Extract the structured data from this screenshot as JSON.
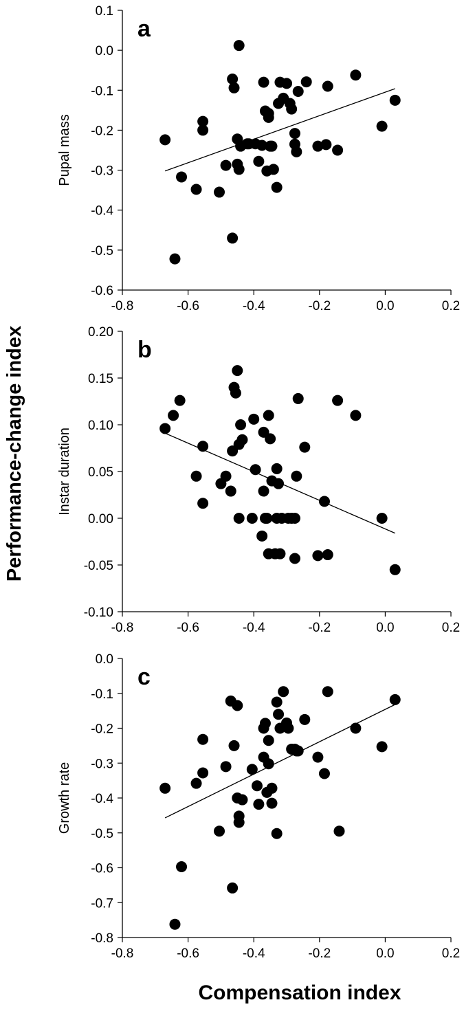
{
  "figure": {
    "shared_ylabel": "Performance-change index",
    "shared_xlabel": "Compensation index"
  },
  "chart_data": [
    {
      "type": "scatter",
      "panel": "a",
      "title": "",
      "xlabel": "",
      "ylabel": "Pupal mass",
      "xlim": [
        -0.8,
        0.2
      ],
      "ylim": [
        -0.6,
        0.1
      ],
      "x_ticks": [
        "-0.8",
        "-0.6",
        "-0.4",
        "-0.2",
        "0.0",
        "0.2"
      ],
      "y_ticks": [
        "0.1",
        "0.0",
        "-0.1",
        "-0.2",
        "-0.3",
        "-0.4",
        "-0.5",
        "-0.6"
      ],
      "grid": false,
      "trendline": {
        "x": [
          -0.67,
          0.03
        ],
        "y": [
          -0.302,
          -0.096
        ]
      },
      "points": {
        "x": [
          -0.67,
          -0.64,
          -0.62,
          -0.575,
          -0.555,
          -0.555,
          -0.505,
          -0.485,
          -0.465,
          -0.465,
          -0.46,
          -0.45,
          -0.45,
          -0.445,
          -0.445,
          -0.44,
          -0.42,
          -0.415,
          -0.395,
          -0.385,
          -0.375,
          -0.37,
          -0.365,
          -0.36,
          -0.355,
          -0.355,
          -0.35,
          -0.345,
          -0.34,
          -0.33,
          -0.325,
          -0.32,
          -0.31,
          -0.3,
          -0.29,
          -0.285,
          -0.275,
          -0.275,
          -0.27,
          -0.265,
          -0.24,
          -0.205,
          -0.18,
          -0.175,
          -0.145,
          -0.09,
          -0.01,
          0.03
        ],
        "y": [
          -0.224,
          -0.522,
          -0.317,
          -0.348,
          -0.178,
          -0.2,
          -0.355,
          -0.288,
          -0.072,
          -0.47,
          -0.094,
          -0.222,
          -0.285,
          0.012,
          -0.298,
          -0.24,
          -0.234,
          -0.234,
          -0.234,
          -0.278,
          -0.238,
          -0.08,
          -0.152,
          -0.302,
          -0.158,
          -0.168,
          -0.24,
          -0.24,
          -0.298,
          -0.343,
          -0.133,
          -0.08,
          -0.12,
          -0.083,
          -0.133,
          -0.147,
          -0.208,
          -0.235,
          -0.254,
          -0.103,
          -0.079,
          -0.24,
          -0.236,
          -0.09,
          -0.25,
          -0.062,
          -0.19,
          -0.125
        ]
      }
    },
    {
      "type": "scatter",
      "panel": "b",
      "title": "",
      "xlabel": "",
      "ylabel": "Instar duration",
      "xlim": [
        -0.8,
        0.2
      ],
      "ylim": [
        -0.1,
        0.2
      ],
      "x_ticks": [
        "-0.8",
        "-0.6",
        "-0.4",
        "-0.2",
        "0.0",
        "0.2"
      ],
      "y_ticks": [
        "0.20",
        "0.15",
        "0.10",
        "0.05",
        "0.00",
        "-0.05",
        "-0.10"
      ],
      "grid": false,
      "trendline": {
        "x": [
          -0.67,
          0.03
        ],
        "y": [
          0.091,
          -0.016
        ]
      },
      "points": {
        "x": [
          -0.67,
          -0.645,
          -0.625,
          -0.575,
          -0.555,
          -0.555,
          -0.5,
          -0.485,
          -0.47,
          -0.465,
          -0.46,
          -0.455,
          -0.45,
          -0.445,
          -0.445,
          -0.44,
          -0.435,
          -0.405,
          -0.4,
          -0.395,
          -0.375,
          -0.37,
          -0.37,
          -0.365,
          -0.36,
          -0.355,
          -0.355,
          -0.35,
          -0.345,
          -0.335,
          -0.33,
          -0.33,
          -0.325,
          -0.32,
          -0.315,
          -0.295,
          -0.285,
          -0.275,
          -0.275,
          -0.27,
          -0.265,
          -0.245,
          -0.205,
          -0.185,
          -0.175,
          -0.145,
          -0.09,
          -0.01,
          0.03
        ],
        "y": [
          0.096,
          0.11,
          0.126,
          0.045,
          0.077,
          0.016,
          0.037,
          0.045,
          0.029,
          0.072,
          0.14,
          0.134,
          0.158,
          0.079,
          0.0,
          0.1,
          0.084,
          0.0,
          0.106,
          0.052,
          -0.019,
          0.029,
          0.092,
          0.0,
          0.0,
          0.11,
          -0.038,
          0.085,
          0.04,
          -0.038,
          0.0,
          0.053,
          0.037,
          -0.038,
          0.0,
          0.0,
          0.0,
          -0.043,
          0.0,
          0.045,
          0.128,
          0.076,
          -0.04,
          0.018,
          -0.039,
          0.126,
          0.11,
          0.0,
          -0.055
        ]
      }
    },
    {
      "type": "scatter",
      "panel": "c",
      "title": "",
      "xlabel": "",
      "ylabel": "Growth rate",
      "xlim": [
        -0.8,
        0.2
      ],
      "ylim": [
        -0.8,
        0.0
      ],
      "x_ticks": [
        "-0.8",
        "-0.6",
        "-0.4",
        "-0.2",
        "0.0",
        "0.2"
      ],
      "y_ticks": [
        "0.0",
        "-0.1",
        "-0.2",
        "-0.3",
        "-0.4",
        "-0.5",
        "-0.6",
        "-0.7",
        "-0.8"
      ],
      "grid": false,
      "trendline": {
        "x": [
          -0.67,
          0.03
        ],
        "y": [
          -0.457,
          -0.132
        ]
      },
      "points": {
        "x": [
          -0.67,
          -0.64,
          -0.62,
          -0.575,
          -0.555,
          -0.555,
          -0.505,
          -0.485,
          -0.47,
          -0.465,
          -0.46,
          -0.45,
          -0.45,
          -0.445,
          -0.445,
          -0.435,
          -0.405,
          -0.39,
          -0.385,
          -0.37,
          -0.37,
          -0.365,
          -0.36,
          -0.355,
          -0.355,
          -0.345,
          -0.345,
          -0.33,
          -0.33,
          -0.325,
          -0.32,
          -0.31,
          -0.3,
          -0.295,
          -0.285,
          -0.275,
          -0.27,
          -0.265,
          -0.245,
          -0.205,
          -0.185,
          -0.175,
          -0.14,
          -0.09,
          -0.01,
          0.03
        ],
        "y": [
          -0.372,
          -0.762,
          -0.597,
          -0.358,
          -0.232,
          -0.328,
          -0.495,
          -0.31,
          -0.122,
          -0.658,
          -0.25,
          -0.135,
          -0.4,
          -0.452,
          -0.47,
          -0.405,
          -0.318,
          -0.365,
          -0.418,
          -0.2,
          -0.283,
          -0.186,
          -0.384,
          -0.302,
          -0.235,
          -0.372,
          -0.415,
          -0.125,
          -0.502,
          -0.16,
          -0.2,
          -0.095,
          -0.185,
          -0.2,
          -0.26,
          -0.26,
          -0.265,
          -0.265,
          -0.175,
          -0.283,
          -0.33,
          -0.095,
          -0.495,
          -0.2,
          -0.253,
          -0.118
        ]
      }
    }
  ]
}
